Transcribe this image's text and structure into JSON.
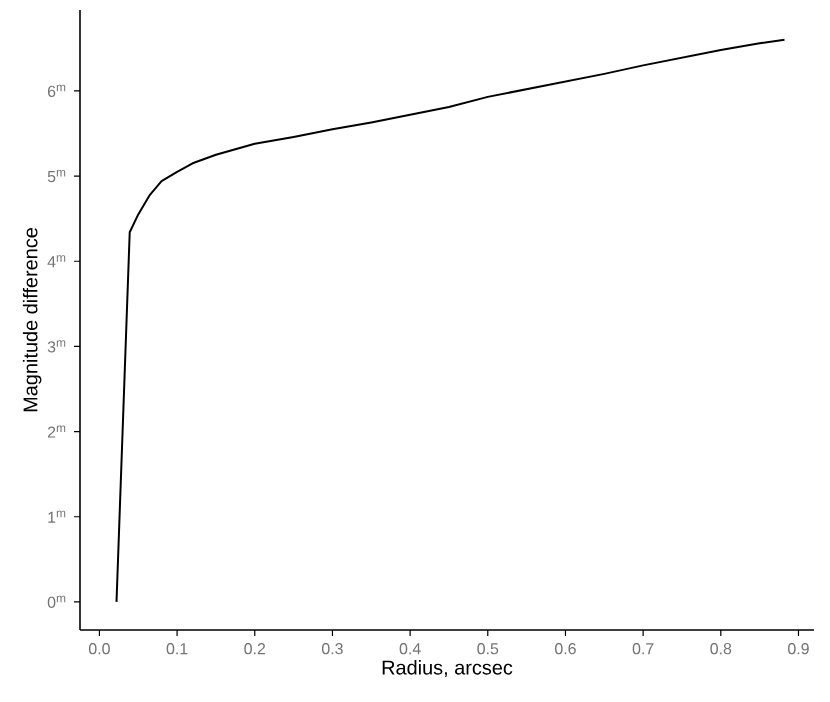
{
  "chart_data": {
    "type": "line",
    "xlabel": "Radius, arcsec",
    "ylabel": "Magnitude difference",
    "x": [
      0.022,
      0.039,
      0.05,
      0.065,
      0.08,
      0.1,
      0.12,
      0.15,
      0.2,
      0.25,
      0.3,
      0.35,
      0.4,
      0.45,
      0.5,
      0.55,
      0.6,
      0.65,
      0.7,
      0.75,
      0.8,
      0.85,
      0.882
    ],
    "series": [
      {
        "color": "#000000",
        "values": [
          0,
          4.34,
          4.55,
          4.78,
          4.94,
          5.05,
          5.15,
          5.25,
          5.38,
          5.46,
          5.55,
          5.63,
          5.72,
          5.81,
          5.93,
          6.02,
          6.11,
          6.2,
          6.3,
          6.39,
          6.48,
          6.56,
          6.6
        ]
      }
    ],
    "xlim": [
      -0.025,
      0.92
    ],
    "ylim": [
      -0.33,
      6.95
    ],
    "xticks": [
      {
        "value": 0,
        "label": "0.0"
      },
      0.1,
      0.2,
      0.3,
      0.4,
      0.5,
      0.6,
      0.7,
      0.8,
      0.9
    ],
    "yticks": [
      {
        "value": 0,
        "label": "0$^{m}$"
      },
      {
        "value": 1,
        "label": "1$^{m}$"
      },
      {
        "value": 2,
        "label": "2$^{m}$"
      },
      {
        "value": 3,
        "label": "3$^{m}$"
      },
      {
        "value": 4,
        "label": "4$^{m}$"
      },
      {
        "value": 5,
        "label": "5$^{m}$"
      },
      {
        "value": 6,
        "label": "6$^{m}$"
      }
    ],
    "marker": "none",
    "line_style": "solid"
  }
}
